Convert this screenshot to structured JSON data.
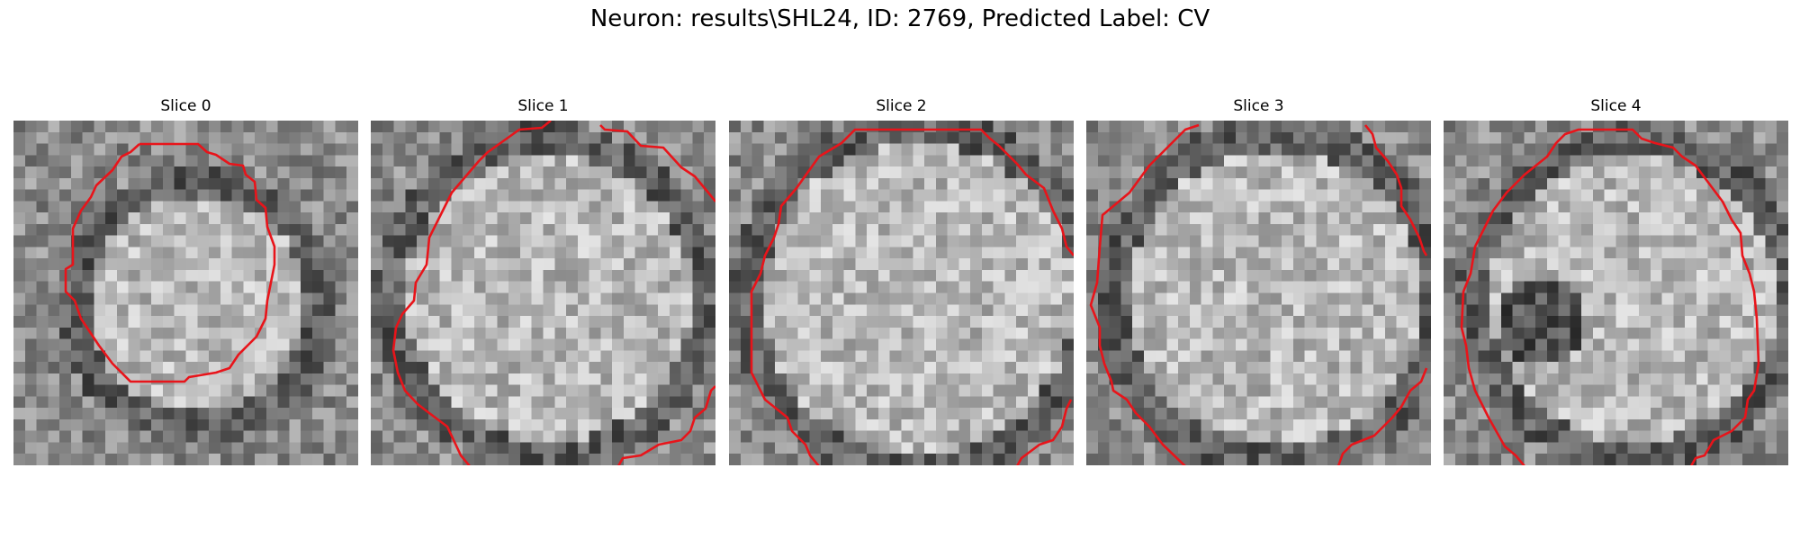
{
  "figure": {
    "title": "Neuron: results\\SHL24, ID: 2769, Predicted Label: CV"
  },
  "panels": [
    {
      "title": "Slice 0",
      "contour_color": "#e8141a"
    },
    {
      "title": "Slice 1",
      "contour_color": "#e8141a"
    },
    {
      "title": "Slice 2",
      "contour_color": "#e8141a"
    },
    {
      "title": "Slice 3",
      "contour_color": "#e8141a"
    },
    {
      "title": "Slice 4",
      "contour_color": "#e8141a"
    }
  ]
}
